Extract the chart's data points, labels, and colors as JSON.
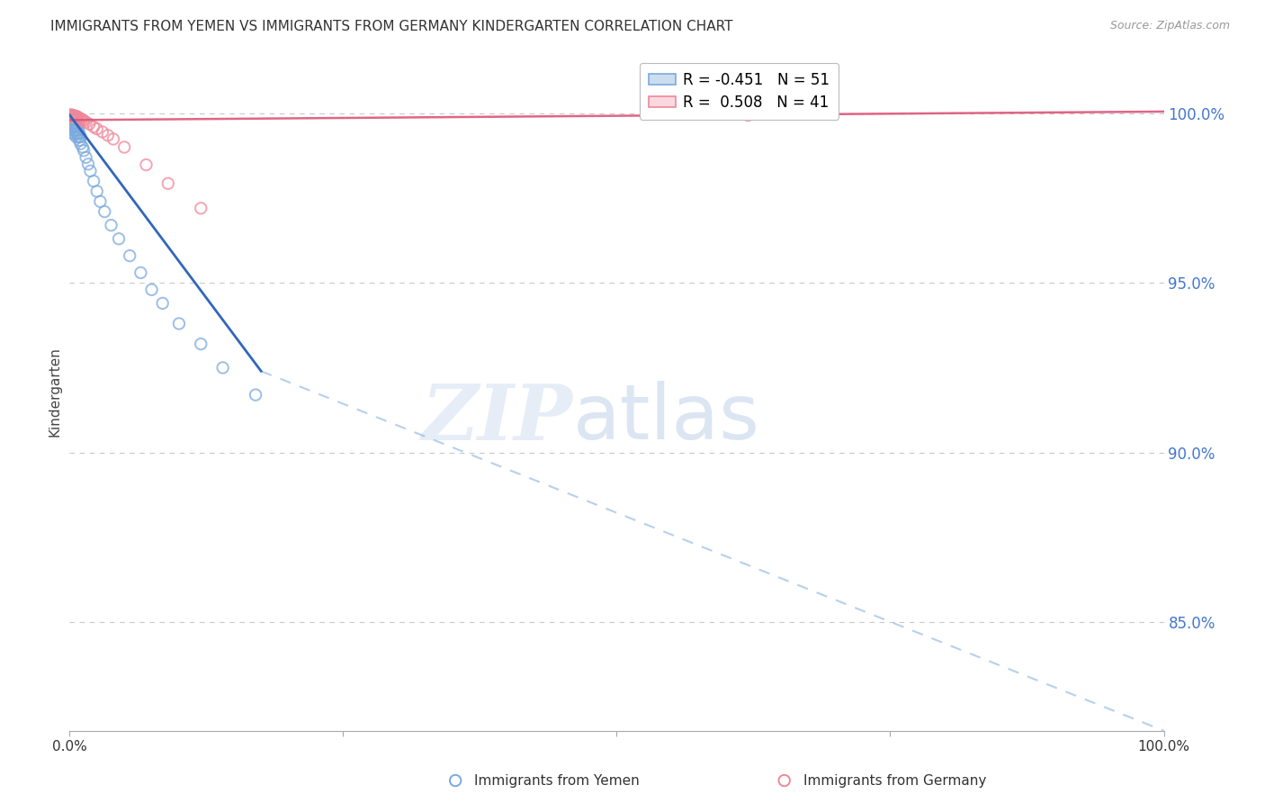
{
  "title": "IMMIGRANTS FROM YEMEN VS IMMIGRANTS FROM GERMANY KINDERGARTEN CORRELATION CHART",
  "source": "Source: ZipAtlas.com",
  "ylabel": "Kindergarten",
  "ytick_labels": [
    "100.0%",
    "95.0%",
    "90.0%",
    "85.0%"
  ],
  "ytick_values": [
    1.0,
    0.95,
    0.9,
    0.85
  ],
  "xlim": [
    0.0,
    1.0
  ],
  "ylim": [
    0.818,
    1.018
  ],
  "right_axis_color": "#4477cc",
  "scatter_blue": "#7aaadd",
  "scatter_pink": "#ee8899",
  "line_blue": "#3366bb",
  "line_pink": "#dd5577",
  "grid_color": "#bbbbbb",
  "blue_scatter_x": [
    0.001,
    0.001,
    0.002,
    0.002,
    0.002,
    0.003,
    0.003,
    0.003,
    0.003,
    0.004,
    0.004,
    0.004,
    0.005,
    0.005,
    0.005,
    0.006,
    0.006,
    0.006,
    0.007,
    0.007,
    0.008,
    0.008,
    0.009,
    0.009,
    0.01,
    0.01,
    0.012,
    0.013,
    0.015,
    0.017,
    0.019,
    0.022,
    0.025,
    0.028,
    0.032,
    0.038,
    0.045,
    0.055,
    0.065,
    0.075,
    0.085,
    0.1,
    0.12,
    0.14,
    0.17,
    0.001,
    0.002,
    0.003,
    0.004,
    0.005,
    0.006
  ],
  "blue_scatter_y": [
    0.9985,
    0.997,
    0.9992,
    0.998,
    0.996,
    0.9988,
    0.997,
    0.996,
    0.994,
    0.9985,
    0.997,
    0.995,
    0.998,
    0.996,
    0.994,
    0.997,
    0.995,
    0.993,
    0.996,
    0.994,
    0.995,
    0.993,
    0.994,
    0.992,
    0.993,
    0.991,
    0.99,
    0.989,
    0.987,
    0.985,
    0.983,
    0.98,
    0.977,
    0.974,
    0.971,
    0.967,
    0.963,
    0.958,
    0.953,
    0.948,
    0.944,
    0.938,
    0.932,
    0.925,
    0.917,
    0.9995,
    0.9993,
    0.999,
    0.9988,
    0.9985,
    0.9982
  ],
  "pink_scatter_x": [
    0.001,
    0.001,
    0.002,
    0.002,
    0.002,
    0.003,
    0.003,
    0.003,
    0.004,
    0.004,
    0.004,
    0.005,
    0.005,
    0.005,
    0.006,
    0.006,
    0.006,
    0.007,
    0.007,
    0.008,
    0.009,
    0.01,
    0.011,
    0.012,
    0.013,
    0.015,
    0.018,
    0.022,
    0.025,
    0.03,
    0.035,
    0.04,
    0.05,
    0.07,
    0.09,
    0.12,
    0.002,
    0.003,
    0.004,
    0.005,
    0.62
  ],
  "pink_scatter_y": [
    0.9995,
    0.9993,
    0.9995,
    0.9993,
    0.9991,
    0.9994,
    0.9992,
    0.999,
    0.9993,
    0.9991,
    0.9989,
    0.9992,
    0.999,
    0.9988,
    0.9991,
    0.9989,
    0.9987,
    0.999,
    0.9988,
    0.9987,
    0.9985,
    0.9984,
    0.9982,
    0.998,
    0.9978,
    0.9974,
    0.9968,
    0.996,
    0.9954,
    0.9945,
    0.9935,
    0.9924,
    0.99,
    0.9848,
    0.9793,
    0.972,
    0.9994,
    0.9992,
    0.999,
    0.9988,
    0.9994
  ],
  "blue_solid_line_x": [
    0.0,
    0.175
  ],
  "blue_solid_line_y": [
    0.9995,
    0.924
  ],
  "blue_dash_line_x": [
    0.175,
    1.0
  ],
  "blue_dash_line_y": [
    0.924,
    0.818
  ],
  "pink_line_x": [
    0.0,
    1.0
  ],
  "pink_line_y": [
    0.998,
    1.0005
  ],
  "watermark_zip": "ZIP",
  "watermark_atlas": "atlas",
  "legend_label1": "R = -0.451   N = 51",
  "legend_label2": "R =  0.508   N = 41"
}
